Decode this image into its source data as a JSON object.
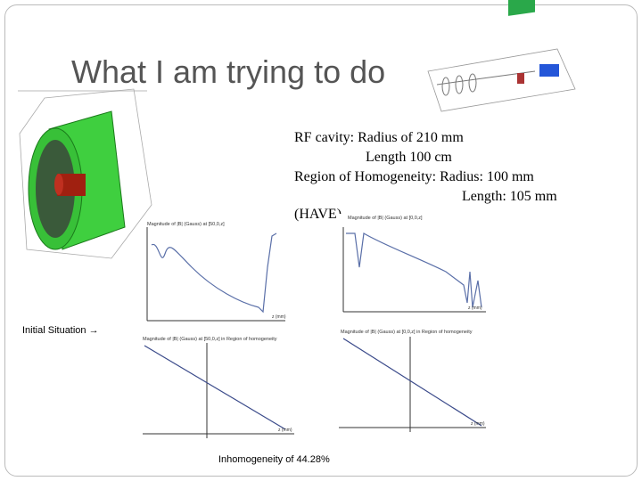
{
  "slide": {
    "title": "What I am trying to do",
    "text_lines": [
      "RF cavity: Radius of 210 mm",
      "Length 100 cm",
      "Region of Homogeneity: Radius: 100 mm",
      "Length: 105 mm",
      "(HAVE)"
    ],
    "initial_label": "Initial Situation →",
    "caption": "Inhomogeneity of 44.28%",
    "plots": [
      {
        "title": "Magnitude of |B| (Gauss) at [50,0,z]",
        "xlabel": "z (mm)"
      },
      {
        "title": "Magnitude of |B| (Gauss) at [0,0,z]",
        "xlabel": "z (mm)"
      },
      {
        "title": "Magnitude of |B| (Gauss) at [50,0,z] in Region of homogeneity",
        "xlabel": "z (mm)"
      },
      {
        "title": "Magnitude of |B| (Gauss) at [0,0,z] in Region of homogeneity",
        "xlabel": "z (mm)"
      }
    ]
  }
}
